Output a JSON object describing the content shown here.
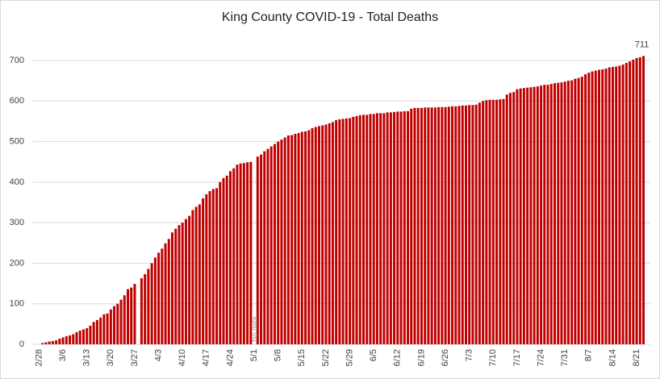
{
  "chart_data": {
    "type": "bar",
    "title": "King County COVID-19 - Total Deaths",
    "annotation": "No data",
    "color": "#c00000",
    "ylim": [
      0,
      700
    ],
    "yticks": [
      0,
      100,
      200,
      300,
      400,
      500,
      600,
      700
    ],
    "grid": true,
    "categories": [
      "2/28",
      null,
      null,
      null,
      null,
      null,
      null,
      "3/6",
      null,
      null,
      null,
      null,
      null,
      null,
      "3/13",
      null,
      null,
      null,
      null,
      null,
      null,
      "3/20",
      null,
      null,
      null,
      null,
      null,
      null,
      "3/27",
      null,
      null,
      null,
      null,
      null,
      null,
      "4/3",
      null,
      null,
      null,
      null,
      null,
      null,
      "4/10",
      null,
      null,
      null,
      null,
      null,
      null,
      "4/17",
      null,
      null,
      null,
      null,
      null,
      null,
      "4/24",
      null,
      null,
      null,
      null,
      null,
      null,
      "5/1",
      null,
      null,
      null,
      null,
      null,
      null,
      "5/8",
      null,
      null,
      null,
      null,
      null,
      null,
      "5/15",
      null,
      null,
      null,
      null,
      null,
      null,
      "5/22",
      null,
      null,
      null,
      null,
      null,
      null,
      "5/29",
      null,
      null,
      null,
      null,
      null,
      null,
      "6/5",
      null,
      null,
      null,
      null,
      null,
      null,
      "6/12",
      null,
      null,
      null,
      null,
      null,
      null,
      "6/19",
      null,
      null,
      null,
      null,
      null,
      null,
      "6/26",
      null,
      null,
      null,
      null,
      null,
      null,
      "7/3",
      null,
      null,
      null,
      null,
      null,
      null,
      "7/10",
      null,
      null,
      null,
      null,
      null,
      null,
      "7/17",
      null,
      null,
      null,
      null,
      null,
      null,
      "7/24",
      null,
      null,
      null,
      null,
      null,
      null,
      "7/31",
      null,
      null,
      null,
      null,
      null,
      null,
      "8/7",
      null,
      null,
      null,
      null,
      null,
      null,
      "8/14",
      null,
      null,
      null,
      null,
      null,
      null,
      "8/21",
      null,
      null
    ],
    "values": [
      0,
      3,
      5,
      7,
      8,
      10,
      14,
      17,
      20,
      22,
      25,
      30,
      34,
      37,
      40,
      46,
      55,
      60,
      66,
      74,
      76,
      86,
      94,
      100,
      110,
      121,
      136,
      140,
      149,
      null,
      163,
      173,
      186,
      200,
      214,
      226,
      236,
      249,
      260,
      276,
      285,
      294,
      300,
      309,
      317,
      331,
      339,
      345,
      360,
      370,
      378,
      383,
      385,
      400,
      410,
      416,
      427,
      434,
      443,
      446,
      447,
      449,
      450,
      null,
      463,
      468,
      476,
      482,
      488,
      494,
      500,
      505,
      510,
      515,
      516,
      519,
      521,
      524,
      525,
      528,
      533,
      536,
      538,
      540,
      542,
      545,
      548,
      553,
      555,
      556,
      557,
      558,
      561,
      563,
      565,
      566,
      566,
      568,
      568,
      570,
      570,
      570,
      572,
      572,
      573,
      574,
      574,
      575,
      575,
      581,
      583,
      583,
      583,
      584,
      584,
      584,
      584,
      585,
      585,
      585,
      586,
      587,
      587,
      588,
      589,
      589,
      590,
      590,
      591,
      596,
      600,
      602,
      603,
      603,
      603,
      604,
      605,
      616,
      620,
      622,
      629,
      631,
      632,
      633,
      634,
      635,
      636,
      638,
      640,
      640,
      642,
      644,
      645,
      646,
      648,
      650,
      651,
      655,
      657,
      660,
      666,
      670,
      673,
      675,
      677,
      678,
      680,
      683,
      684,
      685,
      687,
      690,
      694,
      698,
      702,
      706,
      708,
      711
    ]
  }
}
